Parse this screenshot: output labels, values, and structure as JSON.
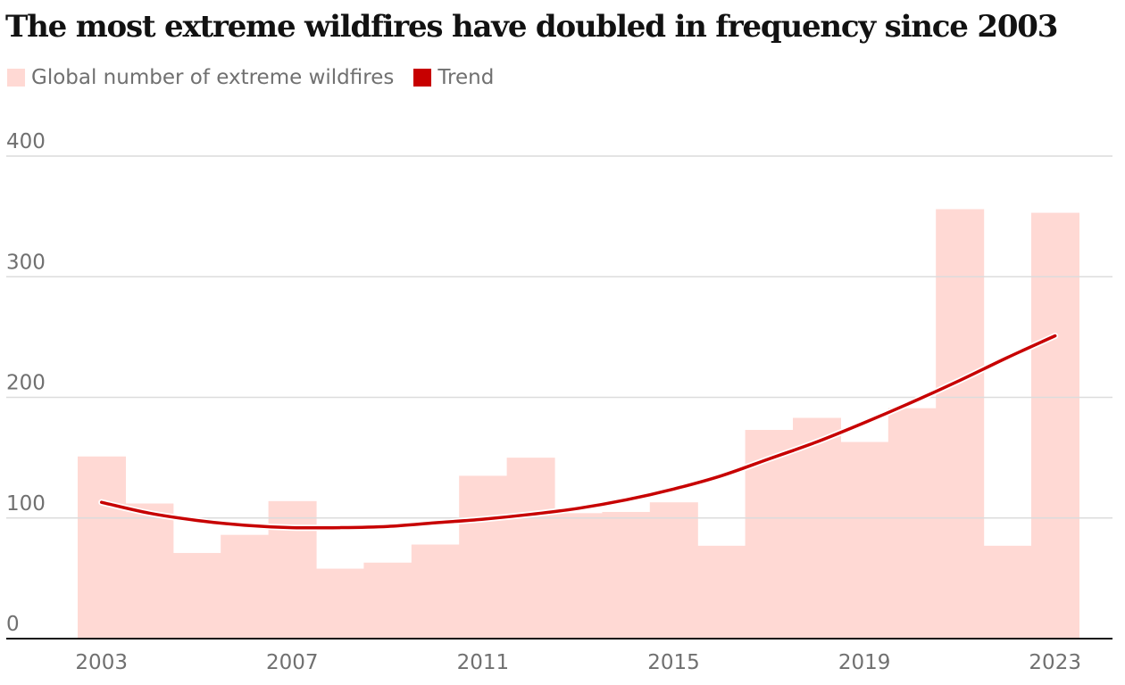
{
  "chart_data": {
    "type": "bar",
    "title": "The most extreme wildfires have doubled in frequency since 2003",
    "xlabel": "",
    "ylabel": "",
    "ylim": [
      0,
      400
    ],
    "y_ticks": [
      0,
      100,
      200,
      300,
      400
    ],
    "x": [
      2003,
      2004,
      2005,
      2006,
      2007,
      2008,
      2009,
      2010,
      2011,
      2012,
      2013,
      2014,
      2015,
      2016,
      2017,
      2018,
      2019,
      2020,
      2021,
      2022,
      2023
    ],
    "x_tick_labels": [
      "2003",
      "2007",
      "2011",
      "2015",
      "2019",
      "2023"
    ],
    "series": [
      {
        "name": "Global number of extreme wildfires",
        "type": "bar",
        "color": "#ffd9d4",
        "values": [
          151,
          112,
          71,
          86,
          114,
          58,
          63,
          78,
          135,
          150,
          104,
          105,
          113,
          77,
          173,
          183,
          163,
          191,
          356,
          77,
          353
        ]
      },
      {
        "name": "Trend",
        "type": "line",
        "color": "#c70000",
        "values": [
          113,
          104,
          98,
          94,
          92,
          92,
          93,
          96,
          99,
          103,
          108,
          115,
          124,
          135,
          149,
          163,
          179,
          196,
          214,
          233,
          251
        ]
      }
    ]
  }
}
